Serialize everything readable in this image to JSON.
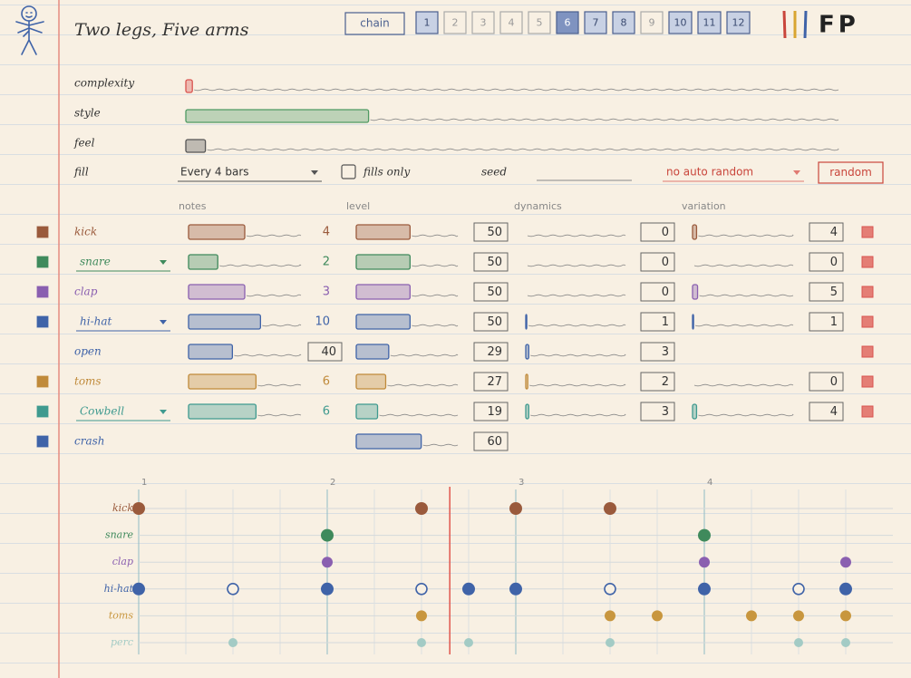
{
  "header": {
    "title": "Two legs, Five arms",
    "chain": "chain",
    "patterns": [
      {
        "label": "1",
        "filled": true
      },
      {
        "label": "2",
        "filled": false
      },
      {
        "label": "3",
        "filled": false
      },
      {
        "label": "4",
        "filled": false
      },
      {
        "label": "5",
        "filled": false
      },
      {
        "label": "6",
        "filled": true,
        "active": true
      },
      {
        "label": "7",
        "filled": true
      },
      {
        "label": "8",
        "filled": true
      },
      {
        "label": "9",
        "filled": false
      },
      {
        "label": "10",
        "filled": true
      },
      {
        "label": "11",
        "filled": true
      },
      {
        "label": "12",
        "filled": true
      }
    ],
    "logo": "FP"
  },
  "global": {
    "complexity": {
      "label": "complexity",
      "value": 0.01
    },
    "style": {
      "label": "style",
      "value": 0.28
    },
    "feel": {
      "label": "feel",
      "value": 0.03
    },
    "fill": {
      "label": "fill",
      "option": "Every 4 bars"
    },
    "fills_only": {
      "label": "fills only",
      "checked": false
    },
    "seed": {
      "label": "seed"
    },
    "auto_random": "no auto random",
    "random": "random"
  },
  "columns": [
    "notes",
    "level",
    "dynamics",
    "variation"
  ],
  "tracks": [
    {
      "name": "kick",
      "color": "#9a5a3c",
      "swatch": true,
      "dropdown": false,
      "mute": true,
      "notes": {
        "value": 4,
        "slider": 0.5
      },
      "level": {
        "value": 50,
        "slider": 0.53
      },
      "dynamics": {
        "value": 0,
        "slider": 0
      },
      "variation": {
        "value": 4,
        "slider": 0.04
      }
    },
    {
      "name": "snare",
      "color": "#3f8a5c",
      "swatch": true,
      "dropdown": true,
      "mute": true,
      "notes": {
        "value": 2,
        "slider": 0.26
      },
      "level": {
        "value": 50,
        "slider": 0.53
      },
      "dynamics": {
        "value": 0,
        "slider": 0
      },
      "variation": {
        "value": 0,
        "slider": 0
      }
    },
    {
      "name": "clap",
      "color": "#8a5fb0",
      "swatch": true,
      "dropdown": false,
      "mute": true,
      "notes": {
        "value": 3,
        "slider": 0.5
      },
      "level": {
        "value": 50,
        "slider": 0.53
      },
      "dynamics": {
        "value": 0,
        "slider": 0
      },
      "variation": {
        "value": 5,
        "slider": 0.05
      }
    },
    {
      "name": "hi-hat",
      "color": "#3f63a8",
      "swatch": true,
      "dropdown": true,
      "mute": true,
      "notes": {
        "value": 10,
        "slider": 0.64
      },
      "level": {
        "value": 50,
        "slider": 0.53
      },
      "dynamics": {
        "value": 1,
        "slider": 0.01
      },
      "variation": {
        "value": 1,
        "slider": 0.01
      }
    },
    {
      "name": "open",
      "color": "#3f63a8",
      "swatch": false,
      "dropdown": false,
      "mute": true,
      "notes_boxed": true,
      "notes": {
        "value": 40,
        "slider": 0.39
      },
      "level": {
        "value": 29,
        "slider": 0.32
      },
      "dynamics": {
        "value": 3,
        "slider": 0.03
      }
    },
    {
      "name": "toms",
      "color": "#c08a3a",
      "swatch": true,
      "dropdown": false,
      "mute": true,
      "notes": {
        "value": 6,
        "slider": 0.6
      },
      "level": {
        "value": 27,
        "slider": 0.29
      },
      "dynamics": {
        "value": 2,
        "slider": 0.02
      },
      "variation": {
        "value": 0,
        "slider": 0
      }
    },
    {
      "name": "Cowbell",
      "color": "#3f9a8f",
      "swatch": true,
      "dropdown": true,
      "mute": true,
      "notes": {
        "value": 6,
        "slider": 0.6
      },
      "level": {
        "value": 19,
        "slider": 0.21
      },
      "dynamics": {
        "value": 3,
        "slider": 0.03
      },
      "variation": {
        "value": 4,
        "slider": 0.04
      }
    },
    {
      "name": "crash",
      "color": "#3f63a8",
      "swatch": true,
      "dropdown": false,
      "mute": false,
      "level": {
        "value": 60,
        "slider": 0.64
      }
    }
  ],
  "sequencer": {
    "beats": [
      "1",
      "2",
      "3",
      "4"
    ],
    "steps": 16,
    "playhead": 6.6,
    "rows": [
      {
        "name": "kick",
        "color": "#9a5a3c",
        "size": 7,
        "hits": [
          0,
          6,
          8,
          10
        ]
      },
      {
        "name": "snare",
        "color": "#3f8a5c",
        "size": 7,
        "hits": [
          4,
          12
        ]
      },
      {
        "name": "clap",
        "color": "#8a5fb0",
        "size": 6,
        "hits": [
          4,
          12,
          15
        ]
      },
      {
        "name": "hi-hat",
        "color": "#3f63a8",
        "size": 7,
        "hits": [
          0,
          4,
          7,
          8,
          12,
          15
        ],
        "open_hits": [
          2,
          6,
          10,
          14
        ]
      },
      {
        "name": "toms",
        "color": "#c8963e",
        "size": 6,
        "hits": [
          6,
          10,
          11,
          13,
          14,
          15
        ]
      },
      {
        "name": "perc",
        "color": "#a3cbc5",
        "size": 5,
        "hits": [
          2,
          6,
          7,
          10,
          14,
          15
        ]
      }
    ]
  }
}
